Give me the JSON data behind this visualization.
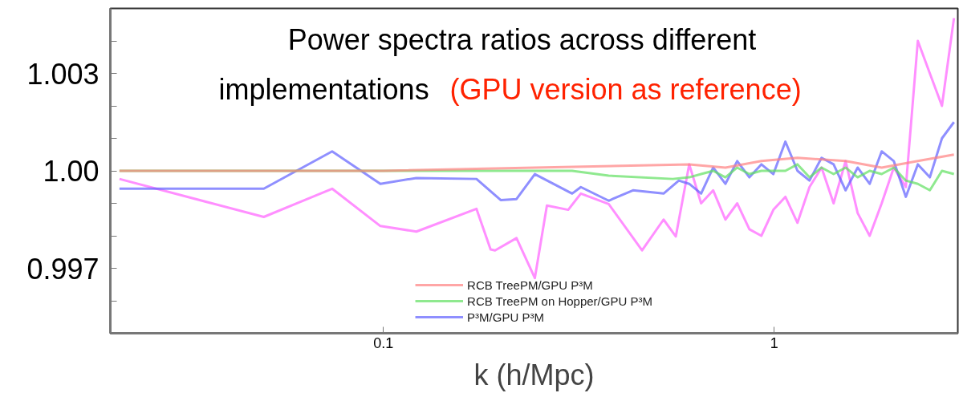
{
  "chart_data": {
    "type": "line",
    "title": "Power spectra ratios across different implementations",
    "subtitle": "(GPU version as reference)",
    "xlabel": "k (h/Mpc)",
    "log": "x",
    "grid": false,
    "legend": "bottom",
    "line_style": "solid",
    "marker": "none",
    "xlim": [
      0.02,
      2.95
    ],
    "xticks": [
      0.1,
      1
    ],
    "ylim": [
      0.995,
      1.005
    ],
    "yticks": [
      {
        "value": 0.996,
        "label": null
      },
      {
        "value": 0.997,
        "label": "0.997"
      },
      {
        "value": 0.998,
        "label": null
      },
      {
        "value": 0.999,
        "label": null
      },
      {
        "value": 1.0,
        "label": "1.00"
      },
      {
        "value": 1.001,
        "label": null
      },
      {
        "value": 1.002,
        "label": null
      },
      {
        "value": 1.003,
        "label": "1.003"
      },
      {
        "value": 1.004,
        "label": null
      }
    ],
    "series": [
      {
        "name": "RCB TreePM/GPU P³M",
        "color": "#ff8080",
        "x": [
          0.0211,
          0.1,
          0.244,
          0.606,
          0.75,
          0.927,
          1.147,
          1.523,
          1.884,
          2.331,
          2.884
        ],
        "values": [
          1.0,
          1.0,
          1.0001,
          1.0002,
          1.0001,
          1.0003,
          1.0004,
          1.0003,
          1.0001,
          1.0003,
          1.0005
        ]
      },
      {
        "name": "RCB TreePM on Hopper/GPU P³M",
        "color": "#60e060",
        "x": [
          0.0211,
          0.1,
          0.304,
          0.377,
          0.55,
          0.606,
          0.65,
          0.698,
          0.75,
          0.804,
          0.864,
          0.927,
          0.995,
          1.068,
          1.147,
          1.231,
          1.322,
          1.419,
          1.523,
          1.635,
          1.755,
          1.884,
          2.023,
          2.172,
          2.331,
          2.502,
          2.687,
          2.884
        ],
        "values": [
          1.0,
          1.0,
          1.0,
          0.99985,
          0.99975,
          0.9998,
          0.9999,
          1.0,
          0.9998,
          1.0001,
          0.9999,
          1.0,
          1.0,
          1.0,
          1.0002,
          0.9998,
          1.0001,
          0.9999,
          1.0001,
          0.9998,
          1.0,
          0.9999,
          1.0001,
          0.9997,
          0.9996,
          0.9994,
          1.0,
          0.9999
        ]
      },
      {
        "name": "P³M/GPU P³M",
        "color": "#6060ff",
        "x": [
          0.0211,
          0.0494,
          0.0739,
          0.0982,
          0.1214,
          0.173,
          0.1995,
          0.219,
          0.244,
          0.304,
          0.32,
          0.377,
          0.435,
          0.521,
          0.57,
          0.606,
          0.65,
          0.698,
          0.75,
          0.804,
          0.864,
          0.927,
          0.995,
          1.068,
          1.147,
          1.231,
          1.322,
          1.419,
          1.523,
          1.635,
          1.755,
          1.884,
          2.023,
          2.172,
          2.331,
          2.502,
          2.687,
          2.884
        ],
        "values": [
          0.99945,
          0.99945,
          1.0006,
          0.9996,
          0.99978,
          0.99975,
          0.9991,
          0.99913,
          0.9999,
          0.9993,
          0.9995,
          0.99908,
          0.9994,
          0.9993,
          0.9997,
          0.9996,
          0.9993,
          1.0001,
          0.9996,
          1.0003,
          0.9998,
          1.0002,
          0.9999,
          1.0009,
          1.0,
          0.9997,
          1.0004,
          1.0002,
          0.9994,
          1.0001,
          0.9996,
          1.0006,
          1.0003,
          0.9992,
          1.0002,
          0.9998,
          1.001,
          1.0015
        ]
      },
      {
        "color": "#ff60ff",
        "x": [
          0.0211,
          0.0494,
          0.0739,
          0.0982,
          0.1214,
          0.173,
          0.188,
          0.193,
          0.219,
          0.244,
          0.262,
          0.297,
          0.32,
          0.377,
          0.459,
          0.521,
          0.56,
          0.606,
          0.65,
          0.698,
          0.75,
          0.804,
          0.864,
          0.927,
          0.995,
          1.068,
          1.147,
          1.231,
          1.322,
          1.419,
          1.523,
          1.635,
          1.755,
          1.884,
          2.023,
          2.172,
          2.331,
          2.502,
          2.687,
          2.884
        ],
        "values": [
          0.99975,
          0.99858,
          0.99945,
          0.9983,
          0.99813,
          0.99883,
          0.99758,
          0.99755,
          0.99793,
          0.9967,
          0.99893,
          0.9988,
          0.9993,
          0.99898,
          0.99755,
          0.9985,
          0.99798,
          1.0002,
          0.999,
          0.9994,
          0.9985,
          0.999,
          0.9982,
          0.998,
          0.9988,
          0.9992,
          0.9984,
          0.9995,
          1.0001,
          0.999,
          1.0003,
          0.9987,
          0.998,
          0.999,
          1.0001,
          0.9995,
          1.004,
          1.003,
          1.002,
          1.0047
        ]
      }
    ]
  }
}
